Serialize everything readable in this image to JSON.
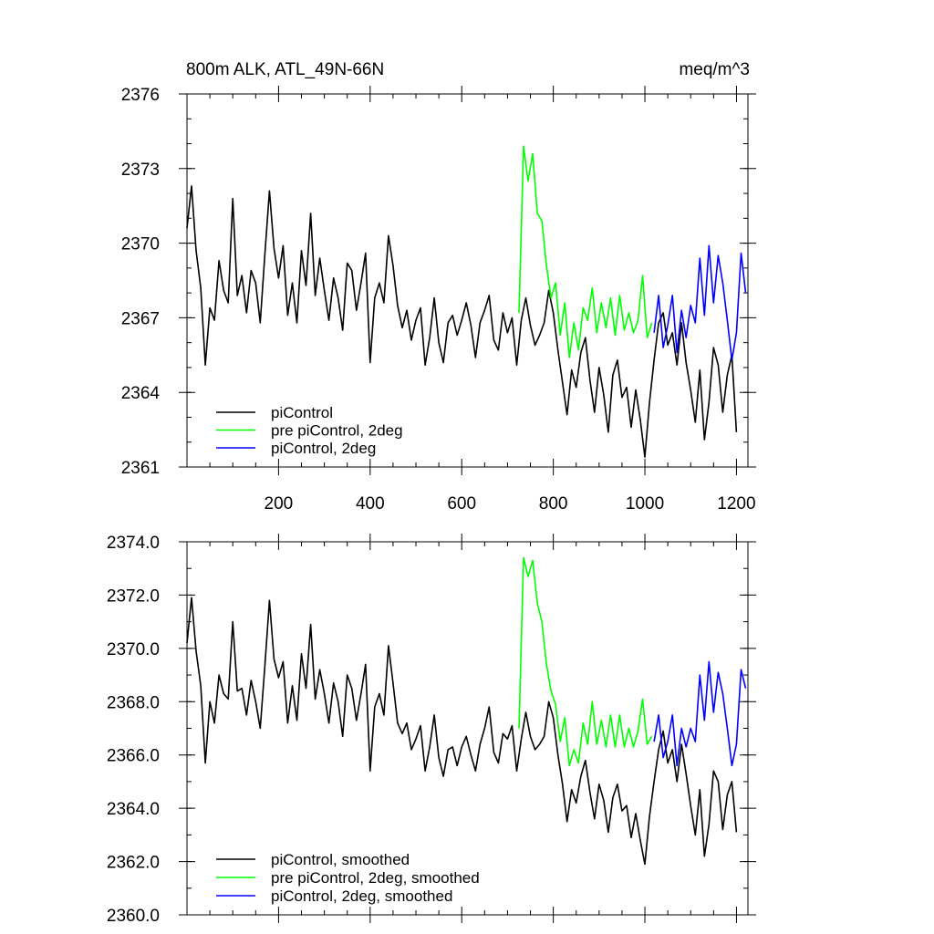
{
  "figure": {
    "title_left": "800m ALK, ATL_49N-66N",
    "title_right": "meq/m^3"
  },
  "chart_data": [
    {
      "type": "line",
      "panel": "top",
      "xlim": [
        0,
        1225
      ],
      "ylim": [
        2361,
        2376
      ],
      "x_ticks": [
        200,
        400,
        600,
        800,
        1000,
        1200
      ],
      "x_tick_labels": [
        "200",
        "400",
        "600",
        "800",
        "1000",
        "1200"
      ],
      "y_ticks": [
        2361,
        2364,
        2367,
        2370,
        2373,
        2376
      ],
      "y_tick_labels": [
        "2361",
        "2364",
        "2367",
        "2370",
        "2373",
        "2376"
      ],
      "legend_position": "bottom-left",
      "series": [
        {
          "name": "piControl",
          "color": "#000000",
          "x": [
            0,
            10,
            20,
            30,
            40,
            50,
            60,
            70,
            80,
            90,
            100,
            110,
            120,
            130,
            140,
            150,
            160,
            170,
            180,
            190,
            200,
            210,
            220,
            230,
            240,
            250,
            260,
            270,
            280,
            290,
            300,
            310,
            320,
            330,
            340,
            350,
            360,
            370,
            380,
            390,
            400,
            410,
            420,
            430,
            440,
            450,
            460,
            470,
            480,
            490,
            500,
            510,
            520,
            530,
            540,
            550,
            560,
            570,
            580,
            590,
            600,
            610,
            620,
            630,
            640,
            650,
            660,
            670,
            680,
            690,
            700,
            710,
            720,
            730,
            740,
            750,
            760,
            770,
            780,
            790,
            800,
            810,
            820,
            830,
            840,
            850,
            860,
            870,
            880,
            890,
            900,
            910,
            920,
            930,
            940,
            950,
            960,
            970,
            980,
            990,
            1000,
            1010,
            1020,
            1030,
            1040,
            1050,
            1060,
            1070,
            1080,
            1090,
            1100,
            1110,
            1120,
            1130,
            1140,
            1150,
            1160,
            1170,
            1180,
            1190,
            1200
          ],
          "values": [
            2370.6,
            2372.3,
            2369.7,
            2368.2,
            2365.1,
            2367.4,
            2366.9,
            2369.3,
            2368.1,
            2367.6,
            2371.8,
            2367.9,
            2368.7,
            2367.2,
            2368.9,
            2368.4,
            2366.8,
            2369.5,
            2372.1,
            2369.8,
            2368.6,
            2369.9,
            2367.1,
            2368.4,
            2366.8,
            2369.7,
            2368.3,
            2371.2,
            2367.9,
            2369.4,
            2368.1,
            2366.9,
            2368.6,
            2367.8,
            2366.5,
            2369.2,
            2368.9,
            2367.3,
            2368.4,
            2369.6,
            2365.2,
            2367.8,
            2368.4,
            2367.6,
            2370.3,
            2369.1,
            2367.5,
            2366.6,
            2367.3,
            2366.1,
            2366.9,
            2367.4,
            2365.1,
            2366.2,
            2367.8,
            2366.0,
            2365.2,
            2366.8,
            2367.1,
            2366.3,
            2366.9,
            2367.6,
            2366.7,
            2365.4,
            2366.8,
            2367.3,
            2367.9,
            2366.1,
            2365.7,
            2367.2,
            2366.4,
            2367.0,
            2365.1,
            2366.9,
            2367.8,
            2366.7,
            2365.9,
            2366.3,
            2366.8,
            2368.1,
            2367.2,
            2365.7,
            2364.4,
            2363.1,
            2364.9,
            2364.2,
            2365.6,
            2366.2,
            2364.5,
            2363.2,
            2365.0,
            2363.9,
            2362.4,
            2364.7,
            2365.3,
            2363.8,
            2364.2,
            2362.6,
            2364.1,
            2362.9,
            2361.4,
            2363.6,
            2365.3,
            2366.8,
            2367.2,
            2365.9,
            2366.4,
            2365.1,
            2366.8,
            2365.2,
            2364.1,
            2362.8,
            2364.9,
            2362.1,
            2363.6,
            2365.8,
            2365.1,
            2363.2,
            2364.7,
            2365.5,
            2362.4
          ]
        },
        {
          "name": "pre piControl, 2deg",
          "color": "#00ff00",
          "x": [
            725,
            735,
            745,
            755,
            765,
            775,
            785,
            795,
            805,
            815,
            825,
            835,
            845,
            855,
            865,
            875,
            885,
            895,
            905,
            915,
            925,
            935,
            945,
            955,
            965,
            975,
            985,
            995,
            1005,
            1015
          ],
          "values": [
            2367.2,
            2373.9,
            2372.5,
            2373.6,
            2371.2,
            2370.9,
            2369.1,
            2367.8,
            2368.4,
            2366.3,
            2367.6,
            2365.4,
            2366.8,
            2365.7,
            2367.4,
            2366.9,
            2368.2,
            2366.4,
            2367.6,
            2366.6,
            2367.8,
            2366.3,
            2367.9,
            2366.5,
            2367.2,
            2366.4,
            2366.9,
            2368.7,
            2366.2,
            2366.8
          ]
        },
        {
          "name": "piControl, 2deg",
          "color": "#0000ff",
          "x": [
            1020,
            1030,
            1040,
            1050,
            1060,
            1070,
            1080,
            1090,
            1100,
            1110,
            1120,
            1130,
            1140,
            1150,
            1160,
            1170,
            1180,
            1190,
            1200,
            1210,
            1220
          ],
          "values": [
            2366.4,
            2367.9,
            2365.8,
            2366.7,
            2367.9,
            2365.6,
            2367.3,
            2366.2,
            2367.5,
            2366.8,
            2369.4,
            2367.1,
            2369.9,
            2367.6,
            2369.5,
            2368.4,
            2366.9,
            2365.3,
            2366.4,
            2369.6,
            2368.0
          ]
        }
      ]
    },
    {
      "type": "line",
      "panel": "bottom",
      "xlim": [
        0,
        1225
      ],
      "ylim": [
        2360.0,
        2374.0
      ],
      "x_ticks": [
        200,
        400,
        600,
        800,
        1000,
        1200
      ],
      "y_ticks": [
        2360.0,
        2362.0,
        2364.0,
        2366.0,
        2368.0,
        2370.0,
        2372.0,
        2374.0
      ],
      "y_tick_labels": [
        "2360.0",
        "2362.0",
        "2364.0",
        "2366.0",
        "2368.0",
        "2370.0",
        "2372.0",
        "2374.0"
      ],
      "legend_position": "bottom-left",
      "series": [
        {
          "name": "piControl, smoothed",
          "color": "#000000",
          "x": [
            0,
            10,
            20,
            30,
            40,
            50,
            60,
            70,
            80,
            90,
            100,
            110,
            120,
            130,
            140,
            150,
            160,
            170,
            180,
            190,
            200,
            210,
            220,
            230,
            240,
            250,
            260,
            270,
            280,
            290,
            300,
            310,
            320,
            330,
            340,
            350,
            360,
            370,
            380,
            390,
            400,
            410,
            420,
            430,
            440,
            450,
            460,
            470,
            480,
            490,
            500,
            510,
            520,
            530,
            540,
            550,
            560,
            570,
            580,
            590,
            600,
            610,
            620,
            630,
            640,
            650,
            660,
            670,
            680,
            690,
            700,
            710,
            720,
            730,
            740,
            750,
            760,
            770,
            780,
            790,
            800,
            810,
            820,
            830,
            840,
            850,
            860,
            870,
            880,
            890,
            900,
            910,
            920,
            930,
            940,
            950,
            960,
            970,
            980,
            990,
            1000,
            1010,
            1020,
            1030,
            1040,
            1050,
            1060,
            1070,
            1080,
            1090,
            1100,
            1110,
            1120,
            1130,
            1140,
            1150,
            1160,
            1170,
            1180,
            1190,
            1200
          ],
          "values": [
            2370.2,
            2371.9,
            2369.9,
            2368.6,
            2365.7,
            2368.0,
            2367.2,
            2369.0,
            2368.3,
            2368.1,
            2371.0,
            2368.4,
            2368.5,
            2367.5,
            2368.8,
            2368.0,
            2367.0,
            2369.3,
            2371.8,
            2369.6,
            2368.9,
            2369.5,
            2367.2,
            2368.6,
            2367.3,
            2369.8,
            2368.5,
            2370.9,
            2368.1,
            2369.2,
            2368.3,
            2367.2,
            2368.7,
            2368.0,
            2366.7,
            2369.0,
            2368.5,
            2367.3,
            2368.3,
            2369.4,
            2365.4,
            2367.8,
            2368.3,
            2367.5,
            2370.1,
            2368.7,
            2367.2,
            2366.8,
            2367.2,
            2366.2,
            2366.6,
            2367.1,
            2365.4,
            2366.3,
            2367.5,
            2365.9,
            2365.2,
            2366.2,
            2366.3,
            2365.6,
            2366.3,
            2366.7,
            2366.0,
            2365.4,
            2366.4,
            2367.0,
            2367.8,
            2366.1,
            2365.7,
            2366.8,
            2366.6,
            2367.1,
            2365.4,
            2366.6,
            2367.6,
            2366.7,
            2366.2,
            2366.4,
            2366.7,
            2368.0,
            2367.4,
            2366.0,
            2364.9,
            2363.5,
            2364.7,
            2364.2,
            2365.2,
            2365.8,
            2364.6,
            2363.6,
            2364.9,
            2364.3,
            2363.1,
            2364.4,
            2364.9,
            2363.9,
            2364.1,
            2362.9,
            2363.8,
            2362.8,
            2361.9,
            2363.7,
            2365.0,
            2366.2,
            2366.9,
            2365.7,
            2366.2,
            2365.0,
            2366.4,
            2365.3,
            2364.1,
            2363.0,
            2364.7,
            2362.2,
            2363.4,
            2365.4,
            2365.0,
            2363.2,
            2364.5,
            2365.0,
            2363.1
          ]
        },
        {
          "name": "pre piControl, 2deg, smoothed",
          "color": "#00ff00",
          "x": [
            725,
            735,
            745,
            755,
            765,
            775,
            785,
            795,
            805,
            815,
            825,
            835,
            845,
            855,
            865,
            875,
            885,
            895,
            905,
            915,
            925,
            935,
            945,
            955,
            965,
            975,
            985,
            995,
            1005,
            1015
          ],
          "values": [
            2367.0,
            2373.4,
            2372.7,
            2373.3,
            2371.7,
            2371.0,
            2369.4,
            2368.4,
            2367.9,
            2366.5,
            2367.4,
            2365.6,
            2366.2,
            2365.7,
            2367.2,
            2366.4,
            2368.0,
            2366.4,
            2367.3,
            2366.3,
            2367.5,
            2366.3,
            2367.5,
            2366.3,
            2367.0,
            2366.3,
            2366.9,
            2368.1,
            2366.4,
            2366.7
          ]
        },
        {
          "name": "piControl, 2deg, smoothed",
          "color": "#0000ff",
          "x": [
            1020,
            1030,
            1040,
            1050,
            1060,
            1070,
            1080,
            1090,
            1100,
            1110,
            1120,
            1130,
            1140,
            1150,
            1160,
            1170,
            1180,
            1190,
            1200,
            1210,
            1220
          ],
          "values": [
            2366.5,
            2367.5,
            2365.9,
            2366.5,
            2367.5,
            2365.6,
            2367.0,
            2366.3,
            2367.0,
            2366.5,
            2369.0,
            2367.3,
            2369.5,
            2367.6,
            2369.1,
            2368.3,
            2367.0,
            2365.6,
            2366.4,
            2369.2,
            2368.5
          ]
        }
      ]
    }
  ]
}
